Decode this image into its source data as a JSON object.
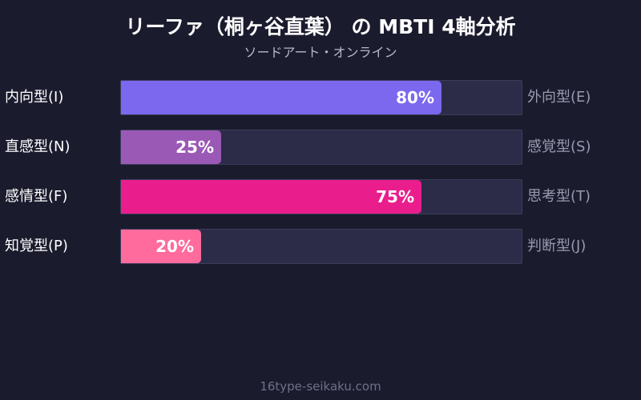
{
  "chart_data": {
    "type": "bar",
    "title": "リーファ（桐ヶ谷直葉） の MBTI 4軸分析",
    "subtitle": "ソードアート・オンライン",
    "value_suffix": "%",
    "ylim": [
      0,
      100
    ],
    "rows": [
      {
        "left": "内向型(I)",
        "right": "外向型(E)",
        "value": 80,
        "color": "#7b68ee"
      },
      {
        "left": "直感型(N)",
        "right": "感覚型(S)",
        "value": 25,
        "color": "#9b59b6"
      },
      {
        "left": "感情型(F)",
        "right": "思考型(T)",
        "value": 75,
        "color": "#e91e8c"
      },
      {
        "left": "知覚型(P)",
        "right": "判断型(J)",
        "value": 20,
        "color": "#ff6b9d"
      }
    ]
  },
  "footer": "16type-seikaku.com"
}
